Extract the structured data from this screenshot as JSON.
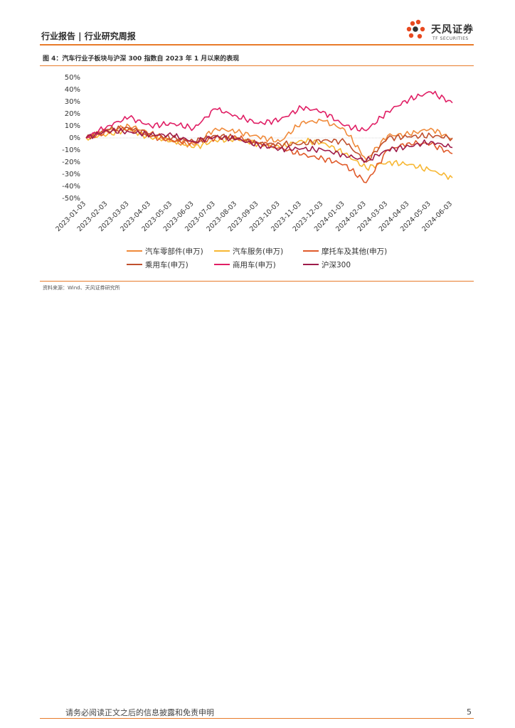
{
  "header": {
    "title": "行业报告 | 行业研究周报",
    "logo_name": "天风证券",
    "logo_sub": "TF SECURITIES"
  },
  "figure": {
    "title": "图 4：汽车行业子板块与沪深 300 指数自 2023 年 1 月以来的表现",
    "source": "资料来源：Wind、天风证券研究所"
  },
  "footer": {
    "disclaimer": "请务必阅读正文之后的信息披露和免责申明",
    "page": "5"
  },
  "colors": {
    "accent": "#e87b2a"
  },
  "chart_data": {
    "type": "line",
    "title": "",
    "xlabel": "",
    "ylabel": "",
    "x": [
      "2023-01-03",
      "2023-02-03",
      "2023-03-03",
      "2023-04-03",
      "2023-05-03",
      "2023-06-03",
      "2023-07-03",
      "2023-08-03",
      "2023-09-03",
      "2023-10-03",
      "2023-11-03",
      "2023-12-03",
      "2024-01-03",
      "2024-02-03",
      "2024-03-03",
      "2024-04-03",
      "2024-05-03",
      "2024-06-03"
    ],
    "ylim": [
      -50,
      50
    ],
    "yticks": [
      -50,
      -40,
      -30,
      -20,
      -10,
      0,
      10,
      20,
      30,
      40,
      50
    ],
    "ytick_labels": [
      "-50%",
      "-40%",
      "-30%",
      "-20%",
      "-10%",
      "0%",
      "10%",
      "20%",
      "30%",
      "40%",
      "50%"
    ],
    "grid": false,
    "legend": "bottom",
    "series": [
      {
        "name": "汽车零部件(申万)",
        "color": "#f08a3a",
        "values": [
          0,
          6,
          10,
          4,
          -3,
          -6,
          8,
          5,
          1,
          -3,
          13,
          14,
          7,
          -18,
          2,
          3,
          8,
          -1
        ]
      },
      {
        "name": "汽车服务(申万)",
        "color": "#f7b733",
        "values": [
          0,
          3,
          7,
          0,
          -2,
          -8,
          -2,
          -1,
          -5,
          -8,
          -2,
          -4,
          -13,
          -25,
          -20,
          -22,
          -27,
          -33
        ]
      },
      {
        "name": "摩托车及其他(申万)",
        "color": "#e05a2a",
        "values": [
          0,
          5,
          8,
          1,
          -2,
          -4,
          0,
          0,
          -4,
          -8,
          -14,
          -17,
          -22,
          -37,
          -10,
          -4,
          -5,
          -13
        ]
      },
      {
        "name": "乘用车(申万)",
        "color": "#c0502e",
        "values": [
          0,
          7,
          8,
          3,
          0,
          -3,
          2,
          0,
          -5,
          -5,
          -5,
          -2,
          -3,
          -20,
          0,
          1,
          2,
          0
        ]
      },
      {
        "name": "商用车(申万)",
        "color": "#e01e64",
        "values": [
          0,
          10,
          17,
          10,
          12,
          8,
          24,
          18,
          12,
          15,
          25,
          22,
          10,
          6,
          22,
          32,
          38,
          29
        ]
      },
      {
        "name": "沪深300",
        "color": "#9e1b4a",
        "values": [
          0,
          6,
          5,
          3,
          2,
          -3,
          1,
          -1,
          -6,
          -9,
          -9,
          -10,
          -14,
          -19,
          -10,
          -7,
          -3,
          -8
        ]
      }
    ]
  }
}
